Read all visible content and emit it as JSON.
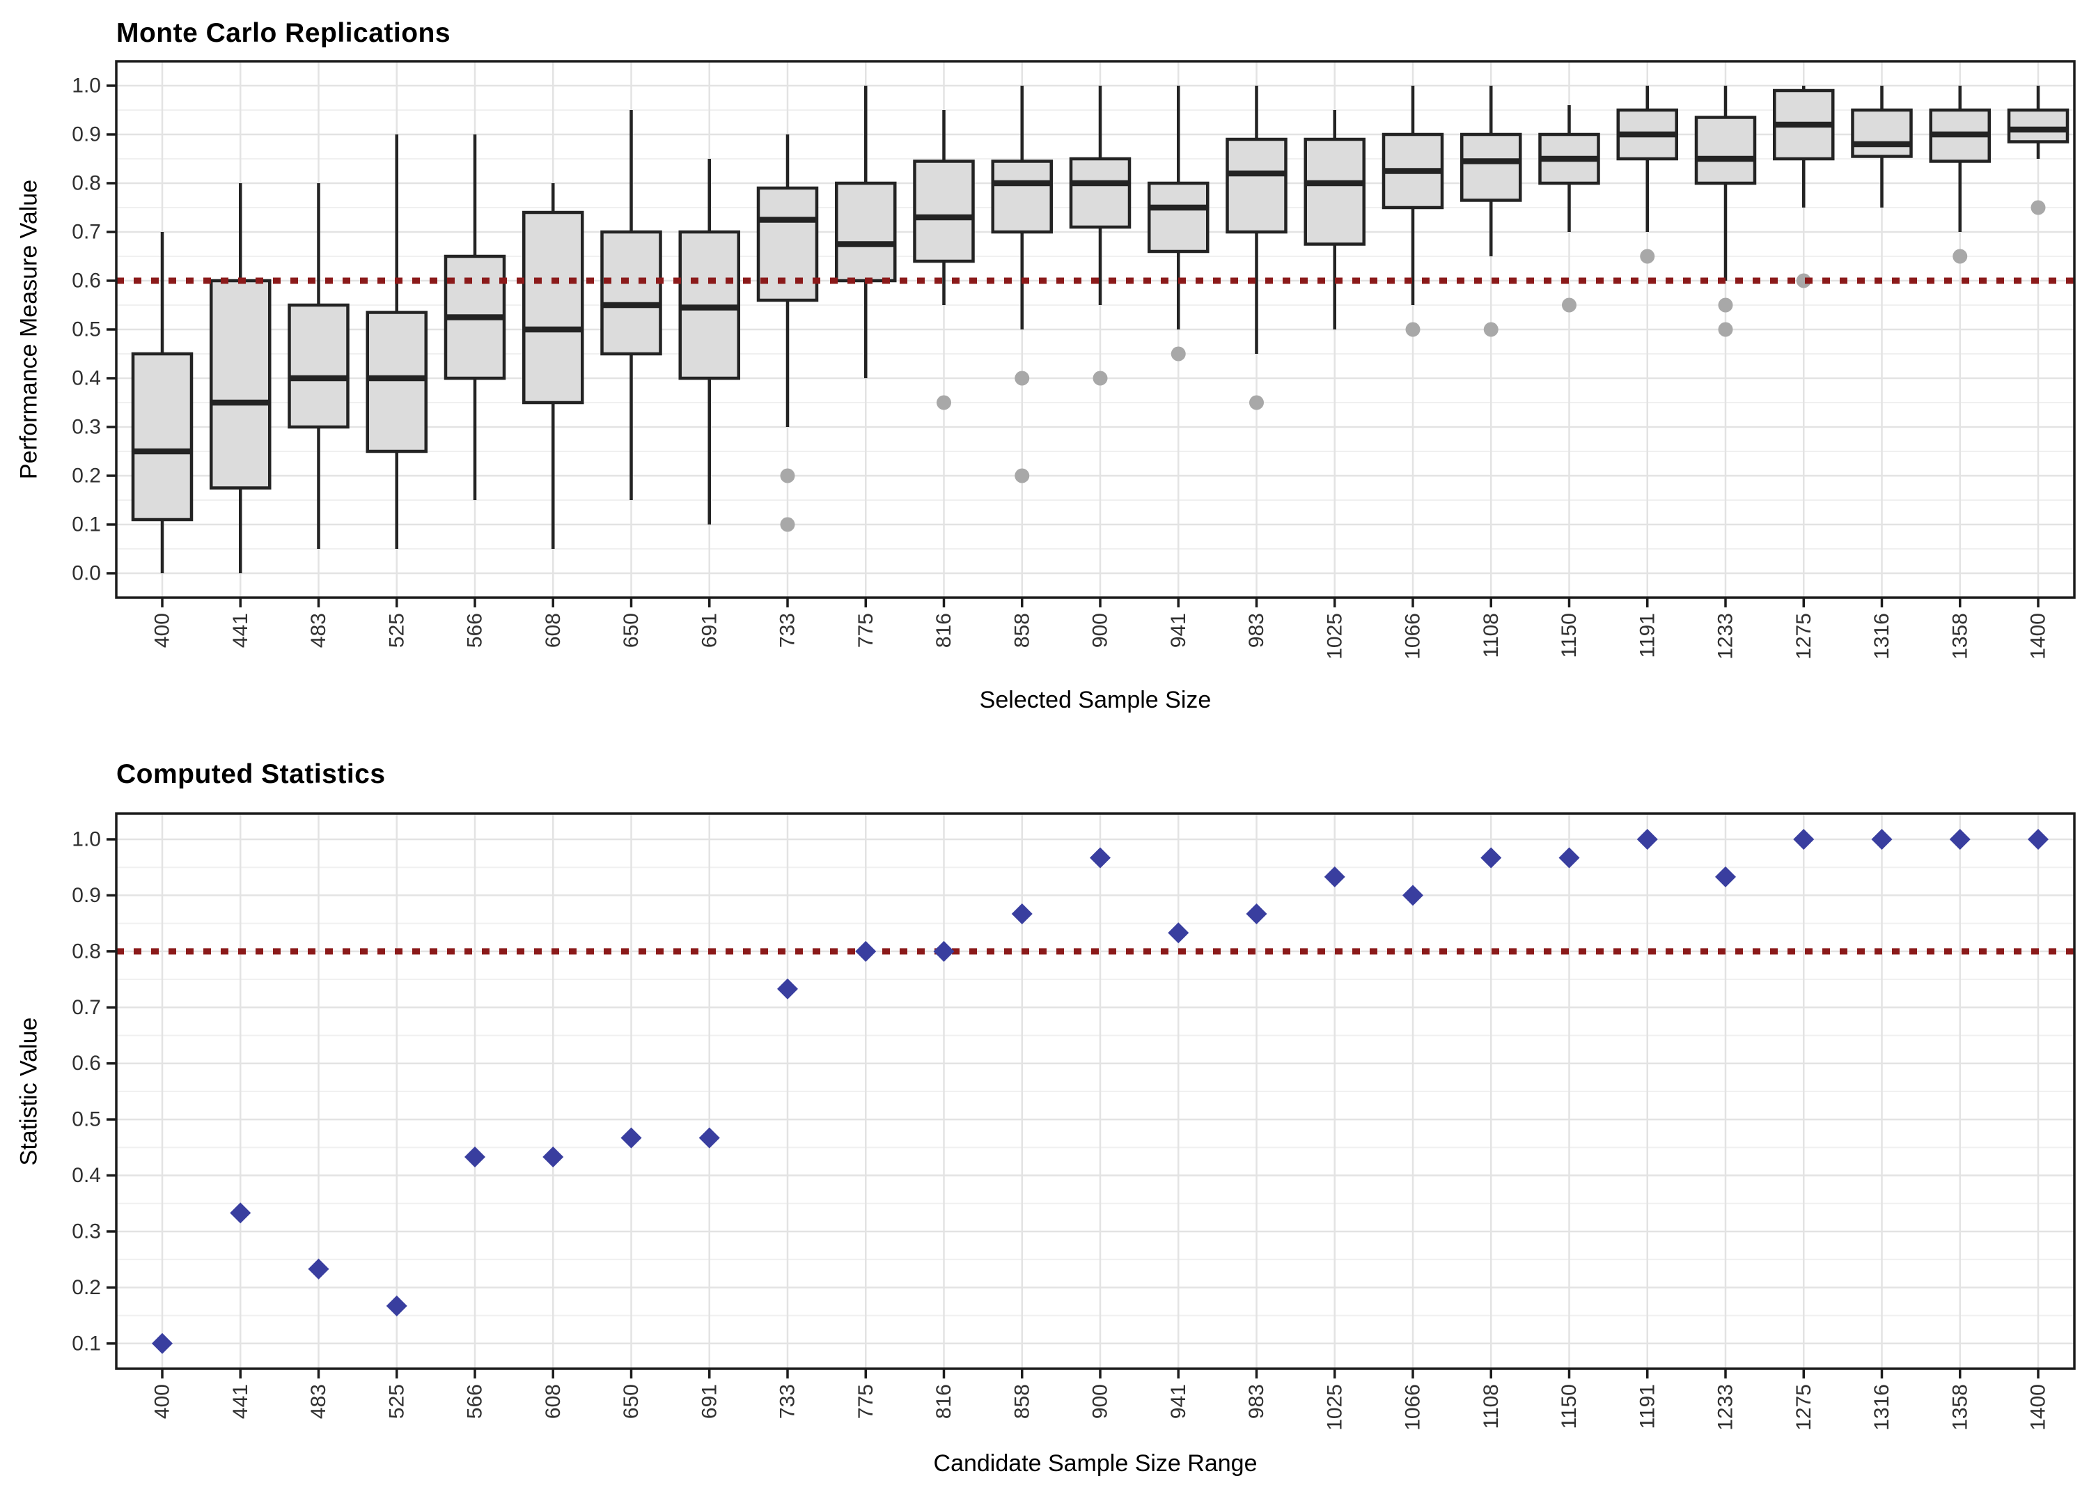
{
  "chart_data": [
    {
      "type": "boxplot",
      "title": "Monte Carlo Replications",
      "xlabel": "Selected Sample Size",
      "ylabel": "Performance Measure Value",
      "categories": [
        400,
        441,
        483,
        525,
        566,
        608,
        650,
        691,
        733,
        775,
        816,
        858,
        900,
        941,
        983,
        1025,
        1066,
        1108,
        1150,
        1191,
        1233,
        1275,
        1316,
        1358,
        1400
      ],
      "y_ticks": [
        0.0,
        0.1,
        0.2,
        0.3,
        0.4,
        0.5,
        0.6,
        0.7,
        0.8,
        0.9,
        1.0
      ],
      "ylim": [
        -0.05,
        1.05
      ],
      "grid": "on",
      "ref_line": {
        "value": 0.6,
        "color": "#8B1A1A",
        "style": "dotted"
      },
      "colors": {
        "box_fill": "#DCDCDC",
        "box_border": "#232323",
        "outlier": "#A8A8A8"
      },
      "boxes": [
        {
          "category": 400,
          "whisker_low": 0.0,
          "q1": 0.11,
          "median": 0.25,
          "q3": 0.45,
          "whisker_high": 0.7,
          "outliers": []
        },
        {
          "category": 441,
          "whisker_low": 0.0,
          "q1": 0.175,
          "median": 0.35,
          "q3": 0.6,
          "whisker_high": 0.8,
          "outliers": []
        },
        {
          "category": 483,
          "whisker_low": 0.05,
          "q1": 0.3,
          "median": 0.4,
          "q3": 0.55,
          "whisker_high": 0.8,
          "outliers": []
        },
        {
          "category": 525,
          "whisker_low": 0.05,
          "q1": 0.25,
          "median": 0.4,
          "q3": 0.535,
          "whisker_high": 0.9,
          "outliers": []
        },
        {
          "category": 566,
          "whisker_low": 0.15,
          "q1": 0.4,
          "median": 0.525,
          "q3": 0.65,
          "whisker_high": 0.9,
          "outliers": []
        },
        {
          "category": 608,
          "whisker_low": 0.05,
          "q1": 0.35,
          "median": 0.5,
          "q3": 0.74,
          "whisker_high": 0.8,
          "outliers": []
        },
        {
          "category": 650,
          "whisker_low": 0.15,
          "q1": 0.45,
          "median": 0.55,
          "q3": 0.7,
          "whisker_high": 0.95,
          "outliers": []
        },
        {
          "category": 691,
          "whisker_low": 0.1,
          "q1": 0.4,
          "median": 0.545,
          "q3": 0.7,
          "whisker_high": 0.85,
          "outliers": []
        },
        {
          "category": 733,
          "whisker_low": 0.3,
          "q1": 0.56,
          "median": 0.725,
          "q3": 0.79,
          "whisker_high": 0.9,
          "outliers": [
            0.2,
            0.1
          ]
        },
        {
          "category": 775,
          "whisker_low": 0.4,
          "q1": 0.6,
          "median": 0.675,
          "q3": 0.8,
          "whisker_high": 1.0,
          "outliers": []
        },
        {
          "category": 816,
          "whisker_low": 0.55,
          "q1": 0.64,
          "median": 0.73,
          "q3": 0.845,
          "whisker_high": 0.95,
          "outliers": [
            0.35
          ]
        },
        {
          "category": 858,
          "whisker_low": 0.5,
          "q1": 0.7,
          "median": 0.8,
          "q3": 0.845,
          "whisker_high": 1.0,
          "outliers": [
            0.4,
            0.2
          ]
        },
        {
          "category": 900,
          "whisker_low": 0.55,
          "q1": 0.71,
          "median": 0.8,
          "q3": 0.85,
          "whisker_high": 1.0,
          "outliers": [
            0.4
          ]
        },
        {
          "category": 941,
          "whisker_low": 0.5,
          "q1": 0.66,
          "median": 0.75,
          "q3": 0.8,
          "whisker_high": 1.0,
          "outliers": [
            0.45
          ]
        },
        {
          "category": 983,
          "whisker_low": 0.45,
          "q1": 0.7,
          "median": 0.82,
          "q3": 0.89,
          "whisker_high": 1.0,
          "outliers": [
            0.35
          ]
        },
        {
          "category": 1025,
          "whisker_low": 0.5,
          "q1": 0.675,
          "median": 0.8,
          "q3": 0.89,
          "whisker_high": 0.95,
          "outliers": []
        },
        {
          "category": 1066,
          "whisker_low": 0.55,
          "q1": 0.75,
          "median": 0.825,
          "q3": 0.9,
          "whisker_high": 1.0,
          "outliers": [
            0.5
          ]
        },
        {
          "category": 1108,
          "whisker_low": 0.65,
          "q1": 0.765,
          "median": 0.845,
          "q3": 0.9,
          "whisker_high": 1.0,
          "outliers": [
            0.5
          ]
        },
        {
          "category": 1150,
          "whisker_low": 0.7,
          "q1": 0.8,
          "median": 0.85,
          "q3": 0.9,
          "whisker_high": 0.96,
          "outliers": [
            0.55
          ]
        },
        {
          "category": 1191,
          "whisker_low": 0.7,
          "q1": 0.85,
          "median": 0.9,
          "q3": 0.95,
          "whisker_high": 1.0,
          "outliers": [
            0.65
          ]
        },
        {
          "category": 1233,
          "whisker_low": 0.6,
          "q1": 0.8,
          "median": 0.85,
          "q3": 0.935,
          "whisker_high": 1.0,
          "outliers": [
            0.55,
            0.5
          ]
        },
        {
          "category": 1275,
          "whisker_low": 0.75,
          "q1": 0.85,
          "median": 0.92,
          "q3": 0.99,
          "whisker_high": 1.0,
          "outliers": [
            0.6
          ]
        },
        {
          "category": 1316,
          "whisker_low": 0.75,
          "q1": 0.855,
          "median": 0.88,
          "q3": 0.95,
          "whisker_high": 1.0,
          "outliers": []
        },
        {
          "category": 1358,
          "whisker_low": 0.7,
          "q1": 0.845,
          "median": 0.9,
          "q3": 0.95,
          "whisker_high": 1.0,
          "outliers": [
            0.65
          ]
        },
        {
          "category": 1400,
          "whisker_low": 0.85,
          "q1": 0.885,
          "median": 0.91,
          "q3": 0.95,
          "whisker_high": 1.0,
          "outliers": [
            0.75
          ]
        }
      ]
    },
    {
      "type": "scatter",
      "title": "Computed Statistics",
      "xlabel": "Candidate Sample Size Range",
      "ylabel": "Statistic Value",
      "categories": [
        400,
        441,
        483,
        525,
        566,
        608,
        650,
        691,
        733,
        775,
        816,
        858,
        900,
        941,
        983,
        1025,
        1066,
        1108,
        1150,
        1191,
        1233,
        1275,
        1316,
        1358,
        1400
      ],
      "y_ticks": [
        0.1,
        0.2,
        0.3,
        0.4,
        0.5,
        0.6,
        0.7,
        0.8,
        0.9,
        1.0
      ],
      "ylim": [
        0.055,
        1.046
      ],
      "grid": "on",
      "ref_line": {
        "value": 0.8,
        "color": "#8B1A1A",
        "style": "dotted"
      },
      "marker": {
        "shape": "diamond",
        "color": "#393E9F"
      },
      "values": [
        0.1,
        0.333,
        0.233,
        0.167,
        0.433,
        0.433,
        0.467,
        0.467,
        0.733,
        0.8,
        0.8,
        0.867,
        0.967,
        0.833,
        0.867,
        0.933,
        0.9,
        0.967,
        0.967,
        1.0,
        0.933,
        1.0,
        1.0,
        1.0,
        1.0
      ]
    }
  ]
}
